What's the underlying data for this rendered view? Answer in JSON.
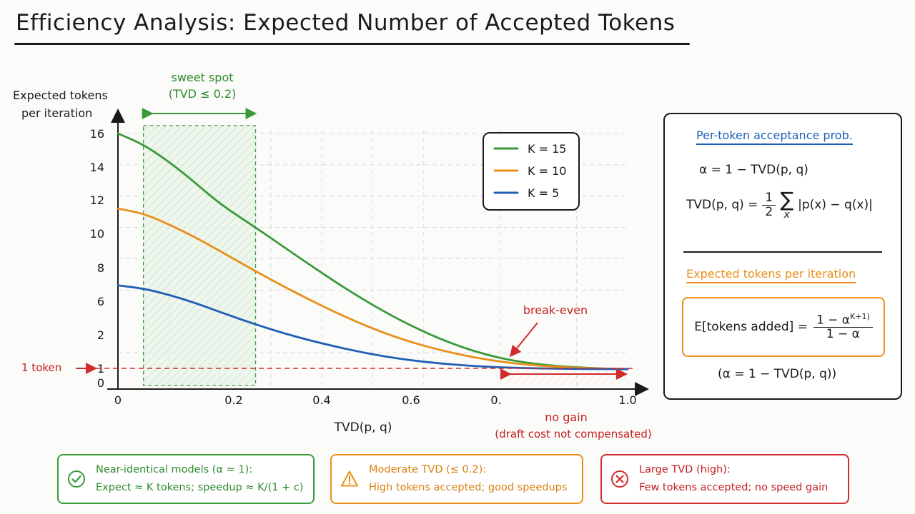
{
  "title": "Efficiency Analysis: Expected Number of Accepted Tokens",
  "chart_data": {
    "type": "line",
    "xlabel": "TVD(p, q)",
    "ylabel": "Expected tokens per iteration",
    "xlim": [
      0,
      1.0
    ],
    "ylim": [
      0,
      16
    ],
    "x_ticks": [
      "0",
      "0.2",
      "0.4",
      "0.6",
      "0.",
      "1.0"
    ],
    "y_ticks": [
      "0",
      "1",
      "2",
      "6",
      "8",
      "10",
      "12",
      "14",
      "16"
    ],
    "grid": true,
    "legend_position": "top-right",
    "legend": [
      "K = 15",
      "K = 10",
      "K = 5"
    ],
    "series": [
      {
        "name": "K = 15",
        "color": "#3a9a3a",
        "points": [
          [
            0,
            16
          ],
          [
            0.05,
            15.3
          ],
          [
            0.1,
            14.2
          ],
          [
            0.15,
            12.9
          ],
          [
            0.2,
            11.5
          ],
          [
            0.27,
            10.0
          ],
          [
            0.35,
            8.2
          ],
          [
            0.45,
            6.0
          ],
          [
            0.55,
            4.1
          ],
          [
            0.65,
            2.6
          ],
          [
            0.75,
            1.6
          ],
          [
            0.85,
            1.15
          ],
          [
            0.95,
            0.98
          ],
          [
            1.0,
            0.95
          ]
        ]
      },
      {
        "name": "K = 10",
        "color": "#e8901a",
        "points": [
          [
            0,
            11.2
          ],
          [
            0.05,
            10.9
          ],
          [
            0.1,
            10.2
          ],
          [
            0.15,
            9.4
          ],
          [
            0.2,
            8.5
          ],
          [
            0.27,
            7.2
          ],
          [
            0.35,
            5.8
          ],
          [
            0.45,
            4.2
          ],
          [
            0.55,
            2.9
          ],
          [
            0.65,
            2.0
          ],
          [
            0.75,
            1.4
          ],
          [
            0.85,
            1.1
          ],
          [
            0.95,
            0.98
          ],
          [
            1.0,
            0.95
          ]
        ]
      },
      {
        "name": "K = 5",
        "color": "#1f5fb5",
        "points": [
          [
            0,
            6.3
          ],
          [
            0.05,
            6.1
          ],
          [
            0.1,
            5.7
          ],
          [
            0.15,
            5.2
          ],
          [
            0.2,
            4.6
          ],
          [
            0.27,
            3.8
          ],
          [
            0.35,
            3.0
          ],
          [
            0.45,
            2.2
          ],
          [
            0.55,
            1.6
          ],
          [
            0.65,
            1.25
          ],
          [
            0.75,
            1.05
          ],
          [
            0.85,
            0.98
          ],
          [
            0.95,
            0.95
          ],
          [
            1.0,
            0.95
          ]
        ]
      }
    ],
    "sweet_spot": {
      "label_line1": "sweet spot",
      "label_line2": "(TVD ≤ 0.2)",
      "x_range": [
        0.05,
        0.27
      ]
    },
    "baseline": {
      "value": 1,
      "label": "1 token"
    },
    "break_even": {
      "label": "break-even",
      "x": 0.75
    },
    "no_gain": {
      "label_line1": "no gain",
      "label_line2": "(draft cost not compensated)",
      "x_range": [
        0.75,
        1.0
      ]
    },
    "colors": {
      "green": "#3a9a3a",
      "orange": "#e8901a",
      "blue": "#1f5fb5",
      "red": "#d12b2b"
    }
  },
  "panel": {
    "title1": "Per-token acceptance prob.",
    "alpha_def": "α = 1 − TVD(p, q)",
    "tvd_lhs": "TVD(p, q) =",
    "tvd_num": "1",
    "tvd_den": "2",
    "sum_symbol": "∑",
    "sum_sub": "x",
    "tvd_rhs": "|p(x) − q(x)|",
    "title2": "Expected tokens per iteration",
    "e_lhs": "E[tokens added] =",
    "e_num": "1 − α",
    "e_num_sup": "K+1)",
    "e_den": "1 − α",
    "alpha_note": "(α = 1 − TVD(p, q))"
  },
  "bottom": [
    {
      "icon": "check-circle-icon",
      "line1": "Near-identical models (α ≈ 1):",
      "line2": "Expect ≈ K tokens; speedup ≈ K/(1 + c)"
    },
    {
      "icon": "warning-triangle-icon",
      "line1": "Moderate TVD (≤ 0.2):",
      "line2": "High tokens accepted; good speedups"
    },
    {
      "icon": "x-circle-icon",
      "line1": "Large TVD (high):",
      "line2": "Few tokens accepted; no speed gain"
    }
  ]
}
